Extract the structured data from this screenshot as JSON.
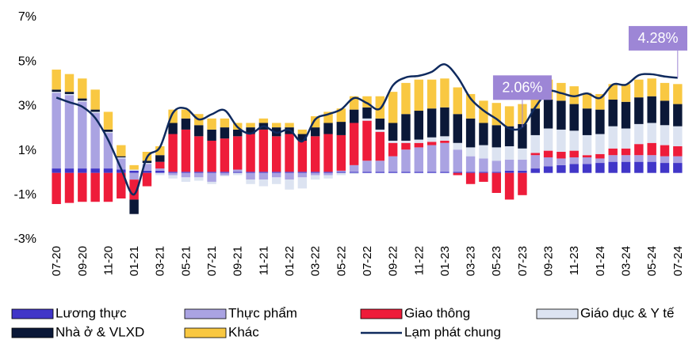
{
  "chart_data": {
    "type": "bar",
    "categories": [
      "07-20",
      null,
      "09-20",
      null,
      "11-20",
      null,
      "01-21",
      null,
      "03-21",
      null,
      "05-21",
      null,
      "07-21",
      null,
      "09-21",
      null,
      "11-21",
      null,
      "01-22",
      null,
      "03-22",
      null,
      "05-22",
      null,
      "07-22",
      null,
      "09-22",
      null,
      "11-22",
      null,
      "01-23",
      null,
      "03-23",
      null,
      "05-23",
      null,
      "07-23",
      null,
      "09-23",
      null,
      "11-23",
      null,
      "01-24",
      null,
      "03-24",
      null,
      "05-24",
      null,
      "07-24"
    ],
    "series": [
      {
        "name": "Lương thực",
        "color": "#4136c8",
        "values": [
          0.2,
          0.2,
          0.2,
          0.2,
          0.2,
          0.15,
          0.1,
          0.1,
          0.1,
          0.05,
          0.05,
          0.05,
          0.05,
          0.05,
          0.05,
          0.05,
          0.05,
          0.05,
          0.05,
          0.05,
          0.05,
          0.05,
          0.05,
          0.05,
          0.05,
          0.05,
          0.05,
          0.05,
          0.05,
          0.05,
          0.05,
          0.05,
          0.05,
          0.05,
          0.05,
          0.1,
          0.1,
          0.2,
          0.3,
          0.35,
          0.4,
          0.4,
          0.45,
          0.5,
          0.5,
          0.5,
          0.5,
          0.45,
          0.45
        ]
      },
      {
        "name": "Thực phẩm",
        "color": "#aaa3e2",
        "values": [
          3.4,
          3.3,
          3.0,
          2.5,
          1.6,
          0.5,
          -0.3,
          0.3,
          0.1,
          -0.1,
          -0.2,
          -0.2,
          -0.4,
          -0.1,
          0.1,
          -0.3,
          -0.3,
          -0.2,
          -0.3,
          -0.2,
          -0.1,
          -0.1,
          0.05,
          0.3,
          0.5,
          0.5,
          0.7,
          1.0,
          1.1,
          1.2,
          1.3,
          1.0,
          0.7,
          0.6,
          0.5,
          0.5,
          0.5,
          0.6,
          0.4,
          0.3,
          0.3,
          0.3,
          0.2,
          0.3,
          0.3,
          0.3,
          0.3,
          0.3,
          0.3
        ]
      },
      {
        "name": "Giao thông",
        "color": "#ee1c3a",
        "values": [
          -1.4,
          -1.35,
          -1.3,
          -1.3,
          -1.3,
          -1.15,
          -0.9,
          -0.6,
          0.3,
          1.7,
          1.9,
          1.6,
          1.4,
          1.5,
          1.5,
          1.7,
          1.9,
          1.6,
          1.7,
          1.4,
          1.6,
          1.7,
          1.6,
          1.9,
          1.8,
          1.3,
          0.6,
          0.3,
          0.2,
          0.15,
          0.1,
          -0.1,
          -0.5,
          -0.4,
          -0.9,
          -1.2,
          -1.0,
          0.1,
          0.3,
          0.3,
          0.3,
          0.1,
          0.2,
          0.3,
          0.3,
          0.5,
          0.55,
          0.5,
          0.45
        ]
      },
      {
        "name": "Giáo dục & Y tế",
        "color": "#dce3f1",
        "values": [
          0.05,
          0.05,
          0.05,
          0.05,
          0.05,
          0.05,
          0.05,
          0.05,
          -0.1,
          -0.15,
          -0.2,
          -0.15,
          -0.1,
          -0.05,
          -0.1,
          -0.2,
          -0.3,
          -0.3,
          -0.45,
          -0.5,
          -0.2,
          -0.15,
          -0.1,
          -0.05,
          0.1,
          0.1,
          0.1,
          0.1,
          0.15,
          0.2,
          0.2,
          0.3,
          0.4,
          0.6,
          0.6,
          0.6,
          0.5,
          0.8,
          1.0,
          1.0,
          0.9,
          0.9,
          0.9,
          1.0,
          0.9,
          0.9,
          0.9,
          0.9,
          0.9
        ]
      },
      {
        "name": "Nhà ở & VLXD",
        "color": "#0b1838",
        "values": [
          0.1,
          0.1,
          0.1,
          0.1,
          0.1,
          0.05,
          -0.65,
          0.1,
          0.3,
          0.5,
          0.5,
          0.5,
          0.5,
          0.5,
          0.3,
          0.3,
          0.3,
          0.4,
          0.3,
          0.3,
          0.4,
          0.5,
          0.6,
          0.6,
          0.5,
          0.5,
          0.8,
          1.2,
          1.3,
          1.3,
          1.3,
          1.3,
          1.3,
          1.0,
          1.0,
          0.9,
          1.1,
          1.2,
          1.3,
          1.3,
          1.2,
          1.2,
          1.1,
          1.2,
          1.2,
          1.2,
          1.2,
          1.1,
          1.0
        ]
      },
      {
        "name": "Khác",
        "color": "#f9c842",
        "values": [
          0.9,
          0.8,
          0.9,
          0.9,
          0.8,
          0.5,
          0.2,
          0.4,
          0.4,
          0.6,
          0.4,
          0.5,
          0.5,
          0.4,
          0.3,
          0.2,
          0.2,
          0.2,
          0.2,
          0.2,
          0.5,
          0.5,
          0.6,
          0.6,
          0.5,
          1.0,
          1.4,
          1.4,
          1.4,
          1.3,
          1.3,
          1.2,
          1.1,
          1.0,
          1.0,
          0.9,
          0.9,
          0.9,
          0.9,
          0.8,
          0.8,
          0.7,
          0.7,
          0.7,
          0.8,
          0.8,
          0.8,
          0.8,
          0.9
        ]
      },
      {
        "name": "Lạm phát chung",
        "type": "line",
        "color": "#0f2a5e",
        "values": [
          3.39,
          3.18,
          2.98,
          2.47,
          1.48,
          0.19,
          -0.97,
          0.7,
          1.16,
          2.7,
          2.9,
          2.41,
          2.64,
          2.82,
          2.06,
          1.77,
          2.1,
          1.81,
          1.94,
          1.42,
          2.41,
          2.64,
          2.86,
          3.37,
          3.14,
          2.89,
          3.94,
          4.3,
          4.37,
          4.55,
          4.89,
          4.31,
          3.35,
          2.81,
          2.43,
          2.0,
          2.06,
          2.96,
          3.66,
          3.59,
          3.45,
          3.58,
          3.37,
          3.98,
          3.97,
          4.4,
          4.44,
          4.34,
          4.28
        ],
        "value_labels": [
          null,
          null,
          null,
          null,
          null,
          null,
          null,
          null,
          null,
          null,
          null,
          null,
          null,
          null,
          null,
          null,
          null,
          null,
          null,
          null,
          null,
          null,
          null,
          null,
          null,
          null,
          null,
          null,
          null,
          null,
          null,
          null,
          null,
          null,
          null,
          null,
          "2.06%",
          null,
          null,
          null,
          null,
          null,
          null,
          null,
          null,
          null,
          null,
          null,
          "4.28%"
        ]
      }
    ],
    "ylim": [
      -3,
      7
    ],
    "yticks": [
      {
        "value": -3,
        "label": "-3%"
      },
      {
        "value": -1,
        "label": "-1%"
      },
      {
        "value": 1,
        "label": "1%"
      },
      {
        "value": 3,
        "label": "3%"
      },
      {
        "value": 5,
        "label": "5%"
      },
      {
        "value": 7,
        "label": "7%"
      }
    ],
    "stacked": true,
    "grid": false,
    "legend": "bottom"
  }
}
